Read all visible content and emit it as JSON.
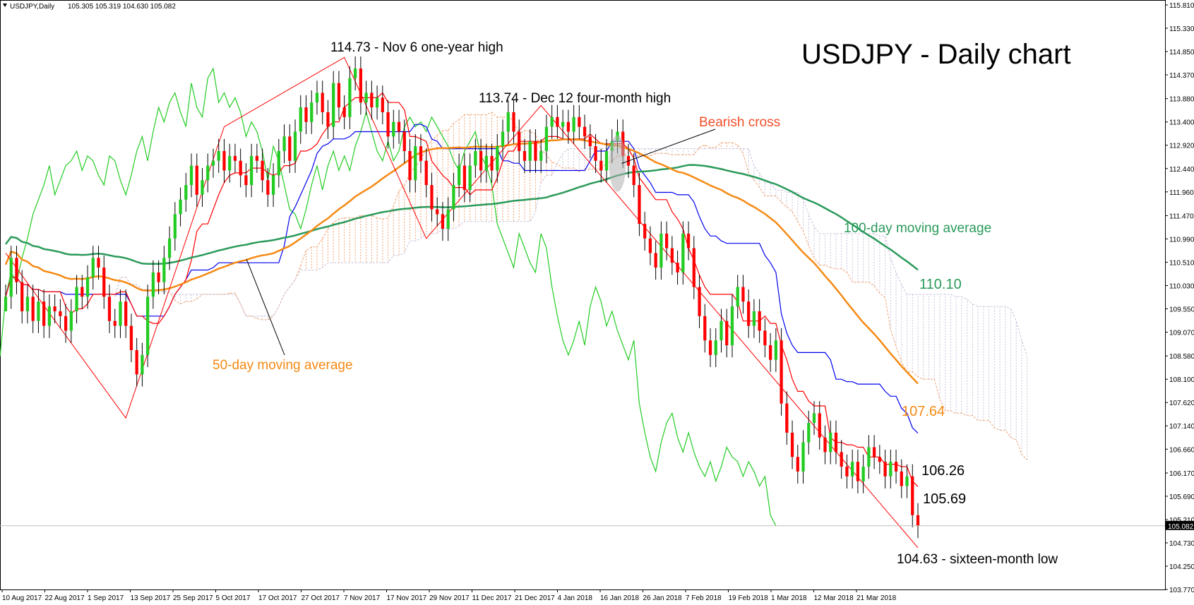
{
  "header": {
    "symbol": "USDJPY,Daily",
    "ohlc": "105.305 105.319 104.630 105.082"
  },
  "chart_data": {
    "type": "candlestick",
    "title": "USDJPY - Daily chart",
    "y_axis": {
      "min": 103.77,
      "max": 115.81,
      "ticks": [
        "115.810",
        "115.330",
        "114.850",
        "114.370",
        "113.880",
        "113.400",
        "112.920",
        "112.440",
        "111.960",
        "111.470",
        "110.990",
        "110.510",
        "110.030",
        "109.550",
        "109.070",
        "108.580",
        "108.100",
        "107.620",
        "107.140",
        "106.660",
        "106.170",
        "105.690",
        "105.210",
        "104.730",
        "104.250",
        "103.770"
      ],
      "current_price": "105.082"
    },
    "x_axis": {
      "ticks": [
        "10 Aug 2017",
        "22 Aug 2017",
        "1 Sep 2017",
        "13 Sep 2017",
        "25 Sep 2017",
        "5 Oct 2017",
        "17 Oct 2017",
        "27 Oct 2017",
        "7 Nov 2017",
        "17 Nov 2017",
        "29 Nov 2017",
        "11 Dec 2017",
        "21 Dec 2017",
        "4 Jan 2018",
        "16 Jan 2018",
        "26 Jan 2018",
        "7 Feb 2018",
        "19 Feb 2018",
        "1 Mar 2018",
        "12 Mar 2018",
        "21 Mar 2018"
      ]
    },
    "annotations": {
      "high_1": "114.73 - Nov 6 one-year high",
      "high_2": "113.74 - Dec 12 four-month high",
      "bearish_cross": "Bearish cross",
      "ma100": "100-day moving average",
      "ma50": "50-day moving average",
      "low": "104.63 - sixteen-month low"
    },
    "levels": {
      "ma100_value": "110.10",
      "ma50_value": "107.64",
      "kijun_value": "106.26",
      "tenkan_value": "105.69"
    },
    "series_colors": {
      "ma50": "#f58a14",
      "ma100": "#2a9a5a",
      "tenkan": "#ff0000",
      "kijun": "#0000ee",
      "chikou": "#22cc22",
      "cloud_a": "#f0a070",
      "cloud_b": "#c8c0dc",
      "bull": "#22cc22",
      "bear": "#ff0000",
      "zigzag": "#ff0000"
    },
    "closes": [
      109.8,
      110.6,
      110.1,
      109.5,
      109.8,
      109.3,
      109.7,
      109.2,
      109.6,
      109.5,
      109.4,
      109.1,
      109.5,
      110.0,
      109.8,
      110.2,
      110.6,
      110.4,
      109.8,
      109.3,
      109.2,
      109.7,
      109.2,
      108.7,
      108.2,
      108.6,
      109.8,
      110.3,
      110.1,
      110.6,
      111.0,
      111.5,
      111.8,
      112.1,
      112.5,
      111.9,
      112.2,
      112.5,
      112.6,
      112.8,
      112.4,
      112.7,
      112.6,
      112.3,
      112.1,
      112.7,
      112.6,
      112.2,
      111.9,
      112.3,
      112.8,
      113.1,
      112.6,
      113.2,
      113.7,
      113.4,
      113.8,
      114.0,
      113.6,
      113.3,
      114.2,
      113.7,
      113.5,
      114.3,
      114.5,
      113.8,
      114.0,
      113.7,
      113.9,
      113.6,
      113.1,
      113.4,
      113.2,
      112.8,
      112.2,
      112.9,
      112.6,
      112.1,
      111.6,
      111.5,
      111.2,
      111.6,
      112.1,
      112.5,
      112.0,
      112.5,
      112.8,
      112.4,
      112.7,
      112.4,
      112.9,
      113.2,
      113.6,
      113.2,
      112.8,
      112.6,
      113.0,
      112.6,
      112.8,
      113.3,
      113.5,
      113.3,
      113.4,
      113.2,
      113.5,
      113.3,
      113.1,
      112.9,
      112.6,
      112.4,
      112.8,
      113.0,
      113.2,
      112.7,
      112.5,
      112.1,
      111.3,
      111.0,
      110.7,
      110.4,
      111.1,
      110.8,
      110.5,
      110.3,
      111.1,
      110.8,
      110.0,
      109.4,
      108.9,
      108.6,
      108.9,
      109.3,
      108.8,
      109.6,
      110.0,
      109.7,
      109.2,
      109.5,
      109.1,
      108.8,
      108.5,
      108.9,
      107.6,
      107.0,
      106.5,
      106.2,
      106.8,
      107.2,
      107.4,
      106.9,
      106.6,
      107.0,
      106.6,
      106.3,
      106.1,
      106.4,
      106.0,
      106.3,
      106.7,
      106.5,
      106.4,
      106.1,
      106.4,
      106.2,
      105.9,
      106.1,
      105.3,
      105.08
    ],
    "ohlc_note": ""
  }
}
